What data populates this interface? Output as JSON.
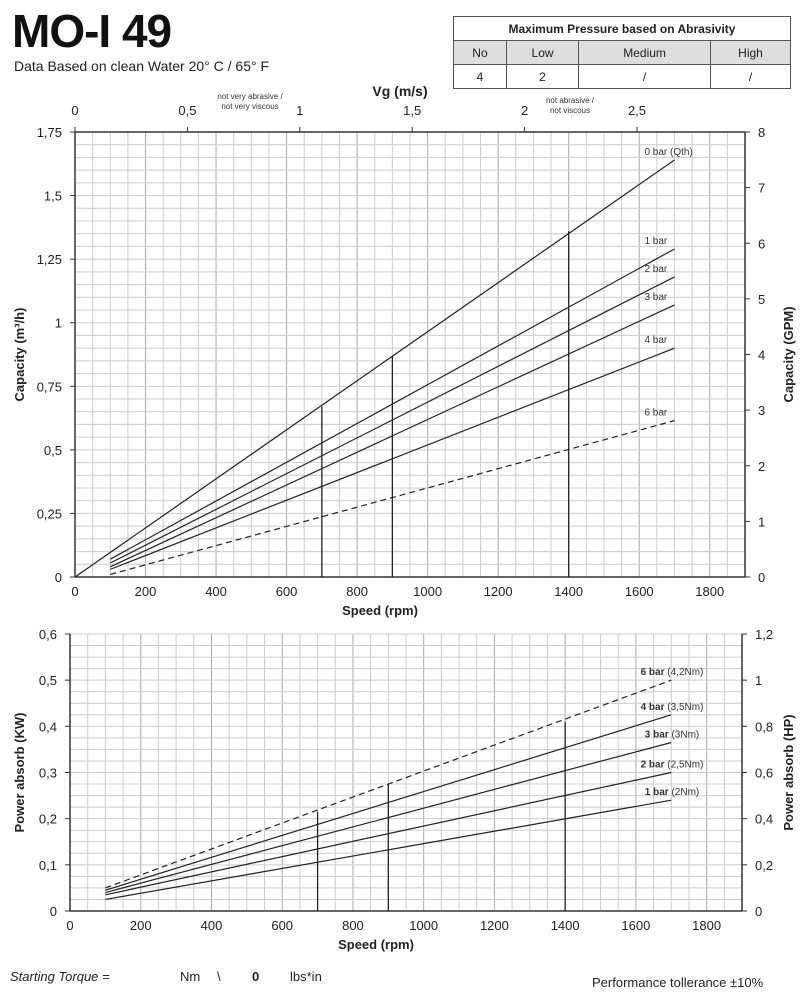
{
  "header": {
    "title": "MO-I 49",
    "subtitle": "Data Based on clean Water 20° C  /  65° F"
  },
  "abrasivity_table": {
    "title": "Maximum Pressure based on Abrasivity",
    "columns": [
      "No",
      "Low",
      "Medium",
      "High"
    ],
    "values": [
      "4",
      "2",
      "/",
      "/"
    ]
  },
  "footer": {
    "starting_torque_label": "Starting Torque =",
    "nm_value": "",
    "nm_unit": "Nm",
    "sep": "\\",
    "lbs_value": "0",
    "lbs_unit": "lbs*in",
    "tolerance": "Performance tollerance ±10%"
  },
  "chart_data": [
    {
      "type": "line",
      "title": "Capacity",
      "xlabel": "Speed (rpm)",
      "ylabel": "Capacity (m³/h)",
      "y2label": "Capacity (GPM)",
      "x2label": "Vg (m/s)",
      "xlim": [
        0,
        1900
      ],
      "ylim": [
        0,
        1.75
      ],
      "y2lim": [
        0,
        8
      ],
      "xticks": [
        0,
        200,
        400,
        600,
        800,
        1000,
        1200,
        1400,
        1600,
        1800
      ],
      "yticks": [
        "0",
        "0,25",
        "0,5",
        "0,75",
        "1",
        "1,25",
        "1,5",
        "1,75"
      ],
      "y2ticks": [
        "0",
        "1",
        "2",
        "3",
        "4",
        "5",
        "6",
        "7",
        "8"
      ],
      "x2ticks": [
        "0",
        "0,5",
        "1",
        "1,5",
        "2",
        "2,5"
      ],
      "x2_annotations": [
        "not very abrasive /",
        "not very viscous",
        "not  abrasive /",
        "not  viscous"
      ],
      "series": [
        {
          "name": "0 bar (Qth)",
          "x": [
            0,
            1700
          ],
          "y": [
            0,
            1.64
          ],
          "dashed": false
        },
        {
          "name": "1 bar",
          "x": [
            100,
            1700
          ],
          "y": [
            0.07,
            1.29
          ],
          "dashed": false
        },
        {
          "name": "2 bar",
          "x": [
            100,
            1700
          ],
          "y": [
            0.055,
            1.18
          ],
          "dashed": false
        },
        {
          "name": "3 bar",
          "x": [
            100,
            1700
          ],
          "y": [
            0.04,
            1.07
          ],
          "dashed": false
        },
        {
          "name": "4 bar",
          "x": [
            100,
            1700
          ],
          "y": [
            0.03,
            0.9
          ],
          "dashed": false
        },
        {
          "name": "6 bar",
          "x": [
            100,
            1700
          ],
          "y": [
            0.01,
            0.615
          ],
          "dashed": true
        }
      ],
      "markers": [
        {
          "x": 700,
          "y": 0.67
        },
        {
          "x": 900,
          "y": 0.87
        },
        {
          "x": 1400,
          "y": 1.36
        }
      ]
    },
    {
      "type": "line",
      "title": "Power absorb",
      "xlabel": "Speed (rpm)",
      "ylabel": "Power absorb (KW)",
      "y2label": "Power absorb (HP)",
      "xlim": [
        0,
        1900
      ],
      "ylim": [
        0,
        0.6
      ],
      "y2lim": [
        0,
        1.2
      ],
      "xticks": [
        0,
        200,
        400,
        600,
        800,
        1000,
        1200,
        1400,
        1600,
        1800
      ],
      "yticks": [
        "0",
        "0,1",
        "0,2",
        "0,3",
        "0,4",
        "0,5",
        "0,6"
      ],
      "y2ticks": [
        "0",
        "0,2",
        "0,4",
        "0,6",
        "0,8",
        "1",
        "1,2"
      ],
      "series": [
        {
          "name": "6 bar",
          "torque": "(4,2Nm)",
          "x": [
            100,
            1700
          ],
          "y": [
            0.05,
            0.5
          ],
          "dashed": true
        },
        {
          "name": "4 bar",
          "torque": "(3,5Nm)",
          "x": [
            100,
            1700
          ],
          "y": [
            0.045,
            0.425
          ],
          "dashed": false
        },
        {
          "name": "3 bar",
          "torque": "(3Nm)",
          "x": [
            100,
            1700
          ],
          "y": [
            0.04,
            0.365
          ],
          "dashed": false
        },
        {
          "name": "2 bar",
          "torque": "(2,5Nm)",
          "x": [
            100,
            1700
          ],
          "y": [
            0.035,
            0.3
          ],
          "dashed": false
        },
        {
          "name": "1 bar",
          "torque": "(2Nm)",
          "x": [
            100,
            1700
          ],
          "y": [
            0.025,
            0.24
          ],
          "dashed": false
        }
      ],
      "markers": [
        {
          "x": 700,
          "y": 0.215
        },
        {
          "x": 900,
          "y": 0.275
        },
        {
          "x": 1400,
          "y": 0.41
        }
      ]
    }
  ]
}
